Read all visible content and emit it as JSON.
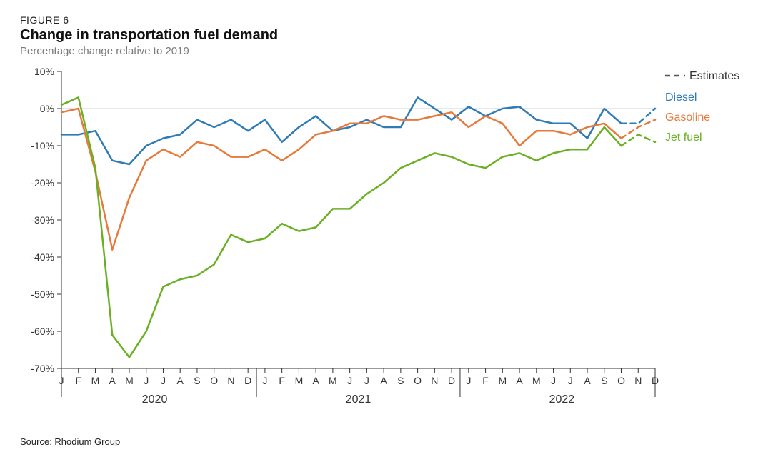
{
  "figure_label": "FIGURE 6",
  "title": "Change in transportation fuel demand",
  "subtitle": "Percentage change relative to 2019",
  "source": "Source: Rhodium Group",
  "chart": {
    "type": "line",
    "background_color": "#ffffff",
    "axis_color": "#333333",
    "zero_line_color": "#d0d0d0",
    "tick_font_size": 14,
    "year_font_size": 16,
    "legend_font_size": 16,
    "line_width": 2.5,
    "ylim": [
      -70,
      10
    ],
    "ytick_step": 10,
    "ytick_suffix": "%",
    "months": [
      "J",
      "F",
      "M",
      "A",
      "M",
      "J",
      "J",
      "A",
      "S",
      "O",
      "N",
      "D"
    ],
    "years": [
      2020,
      2021,
      2022
    ],
    "legend": {
      "estimates_label": "Estimates",
      "estimates_dash_color": "#555555"
    },
    "series": [
      {
        "key": "diesel",
        "label": "Diesel",
        "color": "#2f7bb5",
        "values": [
          -7,
          -7,
          -6,
          -14,
          -15,
          -10,
          -8,
          -7,
          -3,
          -5,
          -3,
          -6,
          -3,
          -9,
          -5,
          -2,
          -6,
          -5,
          -3,
          -5,
          -5,
          3,
          0,
          -3,
          0.5,
          -2,
          0,
          0.5,
          -3,
          -4,
          -4,
          -8,
          0,
          -4,
          -5,
          2
        ],
        "last_solid_index": 33,
        "estimates": [
          -4,
          0
        ]
      },
      {
        "key": "gasoline",
        "label": "Gasoline",
        "color": "#e57a3c",
        "values": [
          -1,
          0,
          -17,
          -38,
          -24,
          -14,
          -11,
          -13,
          -9,
          -10,
          -13,
          -13,
          -11,
          -14,
          -11,
          -7,
          -6,
          -4,
          -4,
          -2,
          -3,
          -3,
          -2,
          -1,
          -5,
          -2,
          -4,
          -10,
          -6,
          -6,
          -7,
          -5,
          -4,
          -8,
          -7,
          -5
        ],
        "last_solid_index": 33,
        "estimates": [
          -5,
          -3
        ]
      },
      {
        "key": "jetfuel",
        "label": "Jet fuel",
        "color": "#6ab023",
        "values": [
          1,
          3,
          -16,
          -61,
          -67,
          -60,
          -48,
          -46,
          -45,
          -42,
          -34,
          -36,
          -35,
          -31,
          -33,
          -32,
          -27,
          -27,
          -23,
          -20,
          -16,
          -14,
          -12,
          -13,
          -15,
          -16,
          -13,
          -12,
          -14,
          -12,
          -11,
          -11,
          -5,
          -10,
          -10,
          -14
        ],
        "last_solid_index": 33,
        "estimates": [
          -7,
          -9
        ]
      }
    ]
  }
}
